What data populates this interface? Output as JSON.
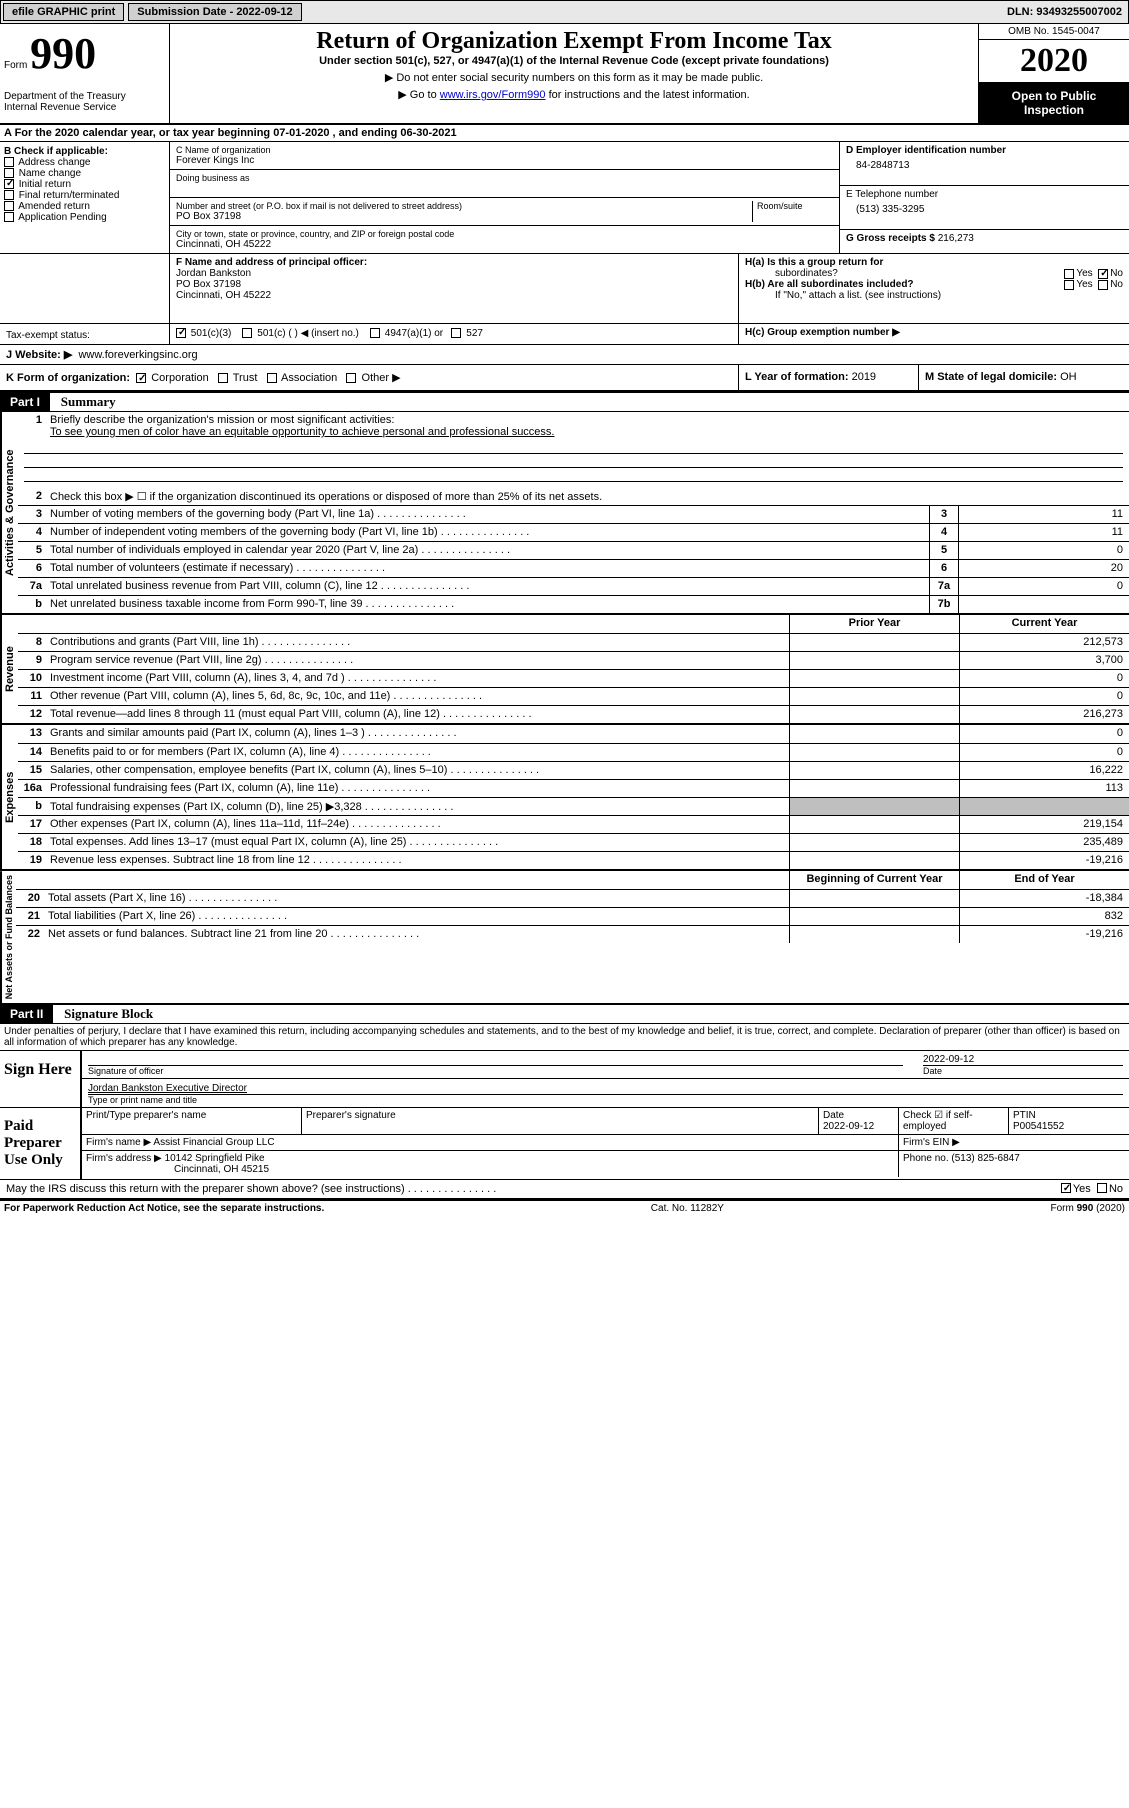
{
  "topbar": {
    "efile": "efile GRAPHIC print",
    "submission_label": "Submission Date - 2022-09-12",
    "dln_label": "DLN: 93493255007002"
  },
  "header": {
    "form_prefix": "Form",
    "form_num": "990",
    "dept": "Department of the Treasury\nInternal Revenue Service",
    "title": "Return of Organization Exempt From Income Tax",
    "subtitle": "Under section 501(c), 527, or 4947(a)(1) of the Internal Revenue Code (except private foundations)",
    "warn": "▶ Do not enter social security numbers on this form as it may be made public.",
    "goto_pre": "▶ Go to ",
    "goto_link": "www.irs.gov/Form990",
    "goto_post": " for instructions and the latest information.",
    "omb": "OMB No. 1545-0047",
    "year": "2020",
    "inspect": "Open to Public Inspection"
  },
  "sectionA": {
    "label": "A For the 2020 calendar year, or tax year beginning 07-01-2020   , and ending 06-30-2021"
  },
  "sectionB": {
    "header": "B Check if applicable:",
    "items": [
      "Address change",
      "Name change",
      "Initial return",
      "Final return/terminated",
      "Amended return",
      "Application Pending"
    ],
    "checked_idx": 2
  },
  "sectionC": {
    "name_lbl": "C Name of organization",
    "name": "Forever Kings Inc",
    "dba_lbl": "Doing business as",
    "addr_lbl": "Number and street (or P.O. box if mail is not delivered to street address)",
    "room_lbl": "Room/suite",
    "addr": "PO Box 37198",
    "city_lbl": "City or town, state or province, country, and ZIP or foreign postal code",
    "city": "Cincinnati, OH  45222"
  },
  "sectionD": {
    "lbl": "D Employer identification number",
    "val": "84-2848713"
  },
  "sectionE": {
    "lbl": "E Telephone number",
    "val": "(513) 335-3295"
  },
  "sectionG": {
    "lbl": "G Gross receipts $",
    "val": "216,273"
  },
  "sectionF": {
    "lbl": "F Name and address of principal officer:",
    "name": "Jordan Bankston",
    "addr1": "PO Box 37198",
    "addr2": "Cincinnati, OH  45222"
  },
  "sectionH": {
    "a_lbl": "H(a)  Is this a group return for",
    "a_sub": "subordinates?",
    "b_lbl": "H(b)  Are all subordinates included?",
    "b_note": "If \"No,\" attach a list. (see instructions)",
    "c_lbl": "H(c)  Group exemption number ▶",
    "yes": "Yes",
    "no": "No"
  },
  "taxexempt": {
    "lbl": "Tax-exempt status:",
    "opt1": "501(c)(3)",
    "opt2": "501(c) (  ) ◀ (insert no.)",
    "opt3": "4947(a)(1) or",
    "opt4": "527"
  },
  "sectionJ": {
    "lbl": "J   Website: ▶",
    "val": "www.foreverkingsinc.org"
  },
  "sectionK": {
    "lbl": "K Form of organization:",
    "opts": [
      "Corporation",
      "Trust",
      "Association",
      "Other ▶"
    ]
  },
  "sectionL": {
    "lbl": "L Year of formation:",
    "val": "2019"
  },
  "sectionM": {
    "lbl": "M State of legal domicile:",
    "val": "OH"
  },
  "part1": {
    "hdr": "Part I",
    "title": "Summary",
    "q1_lbl": "1",
    "q1_text": "Briefly describe the organization's mission or most significant activities:",
    "q1_ans": "To see young men of color have an equitable opportunity to achieve personal and professional success.",
    "q2": "Check this box ▶ ☐  if the organization discontinued its operations or disposed of more than 25% of its net assets.",
    "lines_gov": [
      {
        "n": "3",
        "t": "Number of voting members of the governing body (Part VI, line 1a)",
        "box": "3",
        "v": "11"
      },
      {
        "n": "4",
        "t": "Number of independent voting members of the governing body (Part VI, line 1b)",
        "box": "4",
        "v": "11"
      },
      {
        "n": "5",
        "t": "Total number of individuals employed in calendar year 2020 (Part V, line 2a)",
        "box": "5",
        "v": "0"
      },
      {
        "n": "6",
        "t": "Total number of volunteers (estimate if necessary)",
        "box": "6",
        "v": "20"
      },
      {
        "n": "7a",
        "t": "Total unrelated business revenue from Part VIII, column (C), line 12",
        "box": "7a",
        "v": "0"
      },
      {
        "n": "b",
        "t": "Net unrelated business taxable income from Form 990-T, line 39",
        "box": "7b",
        "v": ""
      }
    ],
    "col_prior": "Prior Year",
    "col_current": "Current Year",
    "col_begin": "Beginning of Current Year",
    "col_end": "End of Year",
    "lines_rev": [
      {
        "n": "8",
        "t": "Contributions and grants (Part VIII, line 1h)",
        "p": "",
        "c": "212,573"
      },
      {
        "n": "9",
        "t": "Program service revenue (Part VIII, line 2g)",
        "p": "",
        "c": "3,700"
      },
      {
        "n": "10",
        "t": "Investment income (Part VIII, column (A), lines 3, 4, and 7d )",
        "p": "",
        "c": "0"
      },
      {
        "n": "11",
        "t": "Other revenue (Part VIII, column (A), lines 5, 6d, 8c, 9c, 10c, and 11e)",
        "p": "",
        "c": "0"
      },
      {
        "n": "12",
        "t": "Total revenue—add lines 8 through 11 (must equal Part VIII, column (A), line 12)",
        "p": "",
        "c": "216,273"
      }
    ],
    "lines_exp": [
      {
        "n": "13",
        "t": "Grants and similar amounts paid (Part IX, column (A), lines 1–3 )",
        "p": "",
        "c": "0"
      },
      {
        "n": "14",
        "t": "Benefits paid to or for members (Part IX, column (A), line 4)",
        "p": "",
        "c": "0"
      },
      {
        "n": "15",
        "t": "Salaries, other compensation, employee benefits (Part IX, column (A), lines 5–10)",
        "p": "",
        "c": "16,222"
      },
      {
        "n": "16a",
        "t": "Professional fundraising fees (Part IX, column (A), line 11e)",
        "p": "",
        "c": "113"
      },
      {
        "n": "b",
        "t": "Total fundraising expenses (Part IX, column (D), line 25) ▶3,328",
        "p": "grey",
        "c": "grey"
      },
      {
        "n": "17",
        "t": "Other expenses (Part IX, column (A), lines 11a–11d, 11f–24e)",
        "p": "",
        "c": "219,154"
      },
      {
        "n": "18",
        "t": "Total expenses. Add lines 13–17 (must equal Part IX, column (A), line 25)",
        "p": "",
        "c": "235,489"
      },
      {
        "n": "19",
        "t": "Revenue less expenses. Subtract line 18 from line 12",
        "p": "",
        "c": "-19,216"
      }
    ],
    "lines_net": [
      {
        "n": "20",
        "t": "Total assets (Part X, line 16)",
        "p": "",
        "c": "-18,384"
      },
      {
        "n": "21",
        "t": "Total liabilities (Part X, line 26)",
        "p": "",
        "c": "832"
      },
      {
        "n": "22",
        "t": "Net assets or fund balances. Subtract line 21 from line 20",
        "p": "",
        "c": "-19,216"
      }
    ]
  },
  "part2": {
    "hdr": "Part II",
    "title": "Signature Block",
    "declaration": "Under penalties of perjury, I declare that I have examined this return, including accompanying schedules and statements, and to the best of my knowledge and belief, it is true, correct, and complete. Declaration of preparer (other than officer) is based on all information of which preparer has any knowledge."
  },
  "sign": {
    "left": "Sign Here",
    "sig_lbl": "Signature of officer",
    "date_lbl": "Date",
    "date_val": "2022-09-12",
    "name": "Jordan Bankston  Executive Director",
    "name_lbl": "Type or print name and title"
  },
  "prep": {
    "left": "Paid Preparer Use Only",
    "r1c1": "Print/Type preparer's name",
    "r1c2": "Preparer's signature",
    "r1c3": "Date",
    "r1c3v": "2022-09-12",
    "r1c4": "Check ☑ if self-employed",
    "r1c5": "PTIN",
    "r1c5v": "P00541552",
    "r2a": "Firm's name    ▶",
    "r2av": "Assist Financial Group LLC",
    "r2b": "Firm's EIN ▶",
    "r3a": "Firm's address ▶",
    "r3av": "10142 Springfield Pike",
    "r3av2": "Cincinnati, OH  45215",
    "r3b": "Phone no.",
    "r3bv": "(513) 825-6847"
  },
  "discuss": {
    "text": "May the IRS discuss this return with the preparer shown above? (see instructions)",
    "yes": "Yes",
    "no": "No"
  },
  "footer": {
    "left": "For Paperwork Reduction Act Notice, see the separate instructions.",
    "mid": "Cat. No. 11282Y",
    "right_pre": "Form ",
    "right_form": "990",
    "right_post": " (2020)"
  },
  "vert": {
    "gov": "Activities & Governance",
    "rev": "Revenue",
    "exp": "Expenses",
    "net": "Net Assets or Fund Balances"
  }
}
